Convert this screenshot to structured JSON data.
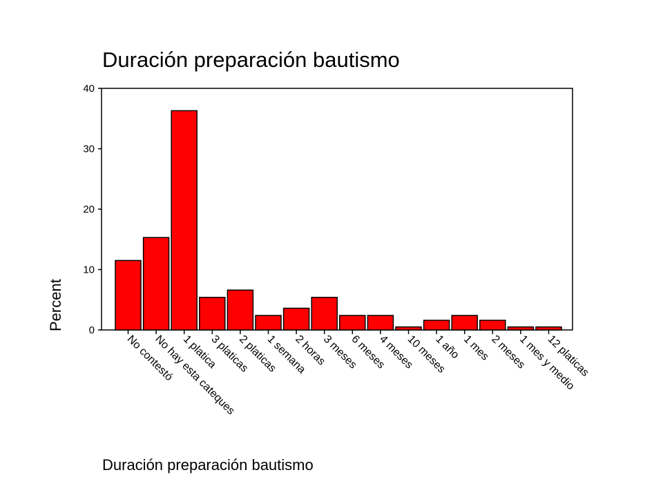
{
  "chart_data": {
    "type": "bar",
    "title": "Duración preparación bautismo",
    "xlabel": "Duración preparación bautismo",
    "ylabel": "Percent",
    "categories": [
      "No contestó",
      "No hay esta cateques",
      "1 platica",
      "3 platicas",
      "2 platicas",
      "1 semana",
      "2 horas",
      "3 meses",
      "6 meses",
      "4 meses",
      "10 meses",
      "1 año",
      "1 mes",
      "2 meses",
      "1 mes y medio",
      "12 platicas"
    ],
    "values": [
      11.5,
      15.3,
      36.3,
      5.4,
      6.6,
      2.4,
      3.6,
      5.4,
      2.4,
      2.4,
      0.5,
      1.6,
      2.4,
      1.6,
      0.5,
      0.5
    ],
    "ylim": [
      0,
      40
    ],
    "yticks": [
      0,
      10,
      20,
      30,
      40
    ],
    "bar_color": "#ff0000",
    "grid": false,
    "legend": "none"
  }
}
